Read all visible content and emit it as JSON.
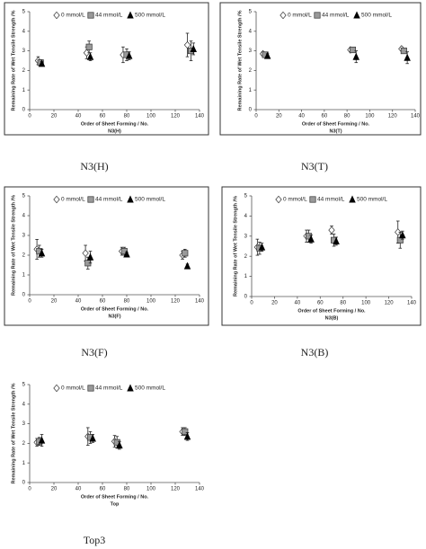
{
  "chart_data": [
    {
      "type": "scatter",
      "title": "N3(H)",
      "caption": "N3(H)",
      "x_label": "Order of Sheet Forming / No.",
      "y_label": "Remaining Rate of Wet Tensile Strength /%",
      "xlim": [
        0,
        140
      ],
      "xticks": [
        0,
        20,
        40,
        60,
        80,
        100,
        120,
        140
      ],
      "ylim": [
        0,
        5
      ],
      "yticks": [
        0,
        1,
        2,
        3,
        4,
        5
      ],
      "series": [
        {
          "name": "0 mmol/L",
          "marker": "diamond",
          "color": "#ffffff",
          "x": [
            7,
            47,
            77,
            130
          ],
          "values": [
            2.5,
            2.9,
            2.8,
            3.3
          ],
          "errors": [
            0.2,
            0.3,
            0.4,
            0.6
          ]
        },
        {
          "name": "44 mmol/L",
          "marker": "square",
          "color": "#999999",
          "x": [
            9,
            49,
            80,
            133
          ],
          "values": [
            2.4,
            3.2,
            2.8,
            3.0
          ],
          "errors": [
            0.15,
            0.3,
            0.3,
            0.5
          ]
        },
        {
          "name": "500 mmol/L",
          "marker": "triangle",
          "color": "#000000",
          "x": [
            10,
            50,
            82,
            135
          ],
          "values": [
            2.35,
            2.7,
            2.75,
            3.1
          ],
          "errors": [
            0.1,
            0.2,
            0.2,
            0.3
          ]
        }
      ]
    },
    {
      "type": "scatter",
      "title": "N3(T)",
      "caption": "N3(T)",
      "x_label": "Order of Sheet Forming / No.",
      "y_label": "Remaining Rate of Wet Tensile Strength /%",
      "xlim": [
        0,
        140
      ],
      "xticks": [
        0,
        20,
        40,
        60,
        80,
        100,
        120,
        140
      ],
      "ylim": [
        0,
        5
      ],
      "yticks": [
        0,
        1,
        2,
        3,
        4,
        5
      ],
      "series": [
        {
          "name": "0 mmol/L",
          "marker": "diamond",
          "color": "#ffffff",
          "x": [
            6,
            83,
            128
          ],
          "values": [
            2.85,
            3.05,
            3.1
          ],
          "errors": [
            0.1,
            0.1,
            0.1
          ]
        },
        {
          "name": "44 mmol/L",
          "marker": "square",
          "color": "#999999",
          "x": [
            8,
            85,
            130
          ],
          "values": [
            2.8,
            3.05,
            3.0
          ],
          "errors": [
            0.1,
            0.1,
            0.1
          ]
        },
        {
          "name": "500 mmol/L",
          "marker": "triangle",
          "color": "#000000",
          "x": [
            10,
            88,
            133
          ],
          "values": [
            2.75,
            2.7,
            2.65
          ],
          "errors": [
            0.1,
            0.3,
            0.3
          ]
        }
      ]
    },
    {
      "type": "scatter",
      "title": "N3(F)",
      "caption": "N3(F)",
      "x_label": "Order of Sheet Forming / No.",
      "y_label": "Remaining Rate of Wet Tensile Strength /%",
      "xlim": [
        0,
        140
      ],
      "xticks": [
        0,
        20,
        40,
        60,
        80,
        100,
        120,
        140
      ],
      "ylim": [
        0,
        5
      ],
      "yticks": [
        0,
        1,
        2,
        3,
        4,
        5
      ],
      "series": [
        {
          "name": "0 mmol/L",
          "marker": "diamond",
          "color": "#ffffff",
          "x": [
            6,
            46,
            76,
            126
          ],
          "values": [
            2.3,
            2.1,
            2.2,
            2.0
          ],
          "errors": [
            0.5,
            0.4,
            0.2,
            0.2
          ]
        },
        {
          "name": "44 mmol/L",
          "marker": "square",
          "color": "#999999",
          "x": [
            8,
            48,
            78,
            128
          ],
          "values": [
            2.2,
            1.6,
            2.2,
            2.1
          ],
          "errors": [
            0.3,
            0.3,
            0.2,
            0.2
          ]
        },
        {
          "name": "500 mmol/L",
          "marker": "triangle",
          "color": "#000000",
          "x": [
            10,
            50,
            80,
            130
          ],
          "values": [
            2.1,
            1.9,
            2.05,
            1.45
          ],
          "errors": [
            0.2,
            0.3,
            0.1,
            0.1
          ]
        }
      ]
    },
    {
      "type": "scatter",
      "title": "N3(B)",
      "caption": "N3(B)",
      "x_label": "Order of Sheet Forming / No.",
      "y_label": "Remaining Rate of Wet Tensile Strength /%",
      "xlim": [
        0,
        140
      ],
      "xticks": [
        0,
        20,
        40,
        60,
        80,
        100,
        120,
        140
      ],
      "ylim": [
        0,
        5
      ],
      "yticks": [
        0,
        1,
        2,
        3,
        4,
        5
      ],
      "series": [
        {
          "name": "0 mmol/L",
          "marker": "diamond",
          "color": "#ffffff",
          "x": [
            5,
            48,
            70,
            128
          ],
          "values": [
            2.45,
            3.0,
            3.3,
            3.2
          ],
          "errors": [
            0.4,
            0.3,
            0.2,
            0.55
          ]
        },
        {
          "name": "44 mmol/L",
          "marker": "square",
          "color": "#999999",
          "x": [
            7,
            50,
            72,
            130
          ],
          "values": [
            2.4,
            3.0,
            2.8,
            2.8
          ],
          "errors": [
            0.3,
            0.3,
            0.3,
            0.4
          ]
        },
        {
          "name": "500 mmol/L",
          "marker": "triangle",
          "color": "#000000",
          "x": [
            9,
            52,
            74,
            132
          ],
          "values": [
            2.45,
            2.85,
            2.75,
            3.05
          ],
          "errors": [
            0.2,
            0.2,
            0.2,
            0.2
          ]
        }
      ]
    },
    {
      "type": "scatter",
      "title": "Top",
      "caption": "Top3",
      "x_label": "Order of Sheet Forming / No.",
      "y_label": "Remaining Rate of Wet Tensile Strength /%",
      "xlim": [
        0,
        140
      ],
      "xticks": [
        0,
        20,
        40,
        60,
        80,
        100,
        120,
        140
      ],
      "ylim": [
        0,
        5
      ],
      "yticks": [
        0,
        1,
        2,
        3,
        4,
        5
      ],
      "series": [
        {
          "name": "0 mmol/L",
          "marker": "diamond",
          "color": "#ffffff",
          "x": [
            6,
            48,
            70,
            126
          ],
          "values": [
            2.05,
            2.35,
            2.1,
            2.6
          ],
          "errors": [
            0.2,
            0.45,
            0.3,
            0.2
          ]
        },
        {
          "name": "44 mmol/L",
          "marker": "square",
          "color": "#999999",
          "x": [
            8,
            50,
            72,
            128
          ],
          "values": [
            2.1,
            2.3,
            2.05,
            2.6
          ],
          "errors": [
            0.2,
            0.3,
            0.3,
            0.2
          ]
        },
        {
          "name": "500 mmol/L",
          "marker": "triangle",
          "color": "#000000",
          "x": [
            10,
            52,
            74,
            130
          ],
          "values": [
            2.15,
            2.25,
            1.9,
            2.35
          ],
          "errors": [
            0.3,
            0.2,
            0.2,
            0.2
          ]
        }
      ]
    }
  ]
}
